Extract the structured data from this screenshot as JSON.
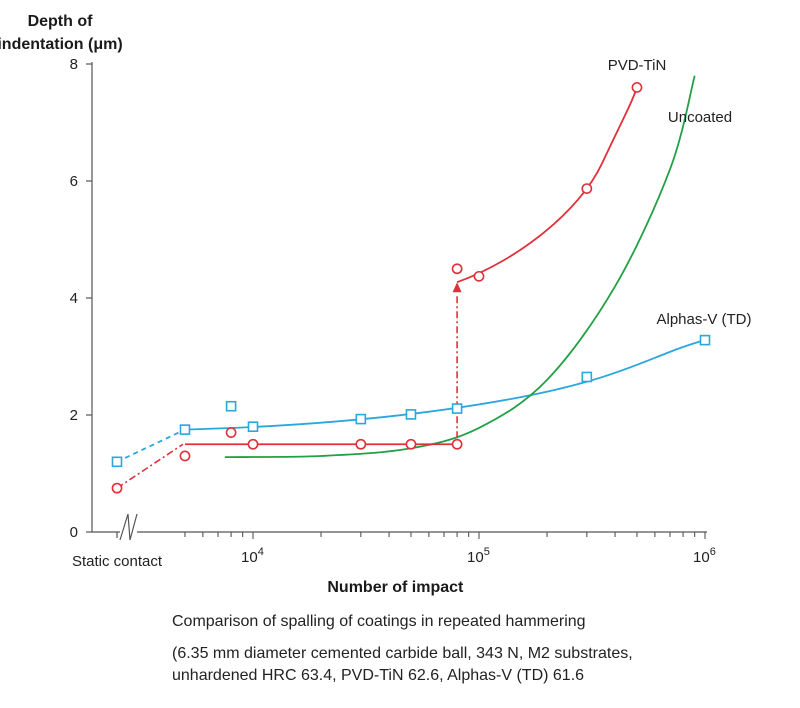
{
  "chart_data": {
    "type": "scatter",
    "ylabel_line1": "Depth of",
    "ylabel_line2": "indentation (μm)",
    "xlabel": "Number of impact",
    "x_scale": "log",
    "xlim": [
      2000,
      1000000
    ],
    "ylim": [
      0,
      8
    ],
    "y_ticks": [
      "0",
      "2",
      "4",
      "6",
      "8"
    ],
    "x_ticks": [
      {
        "value": 10000,
        "base": "10",
        "exp": "4"
      },
      {
        "value": 100000,
        "base": "10",
        "exp": "5"
      },
      {
        "value": 1000000,
        "base": "10",
        "exp": "6"
      }
    ],
    "static_label": "Static contact",
    "grid": false,
    "series": [
      {
        "name": "PVD-TiN",
        "color": "#e0303a",
        "marker": "circle",
        "points": [
          {
            "x": "static",
            "y": 0.75
          },
          {
            "x": 5000,
            "y": 1.3
          },
          {
            "x": 8000,
            "y": 1.7
          },
          {
            "x": 10000,
            "y": 1.5
          },
          {
            "x": 30000,
            "y": 1.5
          },
          {
            "x": 50000,
            "y": 1.5
          },
          {
            "x": 80000,
            "y": 1.5
          },
          {
            "x": 80000,
            "y": 4.5
          },
          {
            "x": 100000,
            "y": 4.37
          },
          {
            "x": 300000,
            "y": 5.87
          },
          {
            "x": 500000,
            "y": 7.6
          }
        ]
      },
      {
        "name": "Uncoated",
        "color": "#23a046",
        "marker": "none",
        "points": [
          {
            "x": 7500,
            "y": 1.28
          },
          {
            "x": 20000,
            "y": 1.3
          },
          {
            "x": 50000,
            "y": 1.43
          },
          {
            "x": 100000,
            "y": 1.78
          },
          {
            "x": 200000,
            "y": 2.6
          },
          {
            "x": 400000,
            "y": 4.2
          },
          {
            "x": 700000,
            "y": 6.2
          },
          {
            "x": 900000,
            "y": 7.8
          }
        ]
      },
      {
        "name": "Alphas-V (TD)",
        "color": "#2aa7dc",
        "marker": "square",
        "points": [
          {
            "x": "static",
            "y": 1.2
          },
          {
            "x": 5000,
            "y": 1.75
          },
          {
            "x": 8000,
            "y": 2.15
          },
          {
            "x": 10000,
            "y": 1.8
          },
          {
            "x": 30000,
            "y": 1.93
          },
          {
            "x": 50000,
            "y": 2.01
          },
          {
            "x": 80000,
            "y": 2.11
          },
          {
            "x": 300000,
            "y": 2.65
          },
          {
            "x": 1000000,
            "y": 3.28
          }
        ]
      }
    ]
  },
  "caption": {
    "line1": "Comparison of spalling of coatings in repeated hammering",
    "line2": "(6.35 mm diameter cemented carbide ball, 343 N, M2 substrates,",
    "line3": "unhardened HRC 63.4, PVD-TiN 62.6, Alphas-V (TD) 61.6"
  }
}
